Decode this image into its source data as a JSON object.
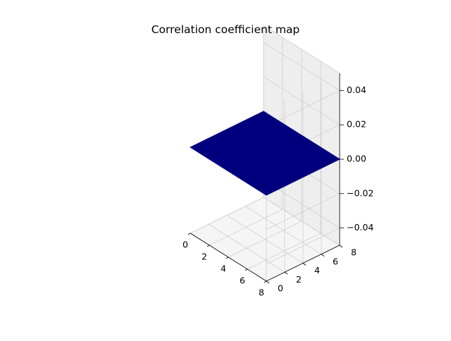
{
  "chart_data": {
    "type": "surface3d",
    "title": "Correlation coefficient map",
    "xlabel": "",
    "ylabel": "",
    "zlabel": "",
    "x_ticks": [
      "0",
      "2",
      "4",
      "6",
      "8"
    ],
    "y_ticks": [
      "0",
      "2",
      "4",
      "6",
      "8"
    ],
    "z_ticks": [
      "−0.04",
      "−0.02",
      "0.00",
      "0.02",
      "0.04"
    ],
    "xlim": [
      0,
      8
    ],
    "ylim": [
      0,
      8
    ],
    "zlim": [
      -0.05,
      0.05
    ],
    "surface": {
      "x_range": [
        0,
        8
      ],
      "y_range": [
        0,
        8
      ],
      "z_value": 0.0
    },
    "grid": true,
    "colors": {
      "surface": "#00007f",
      "pane": "#f2f2f2",
      "grid": "#d0d0d0",
      "axis": "#000000"
    }
  }
}
